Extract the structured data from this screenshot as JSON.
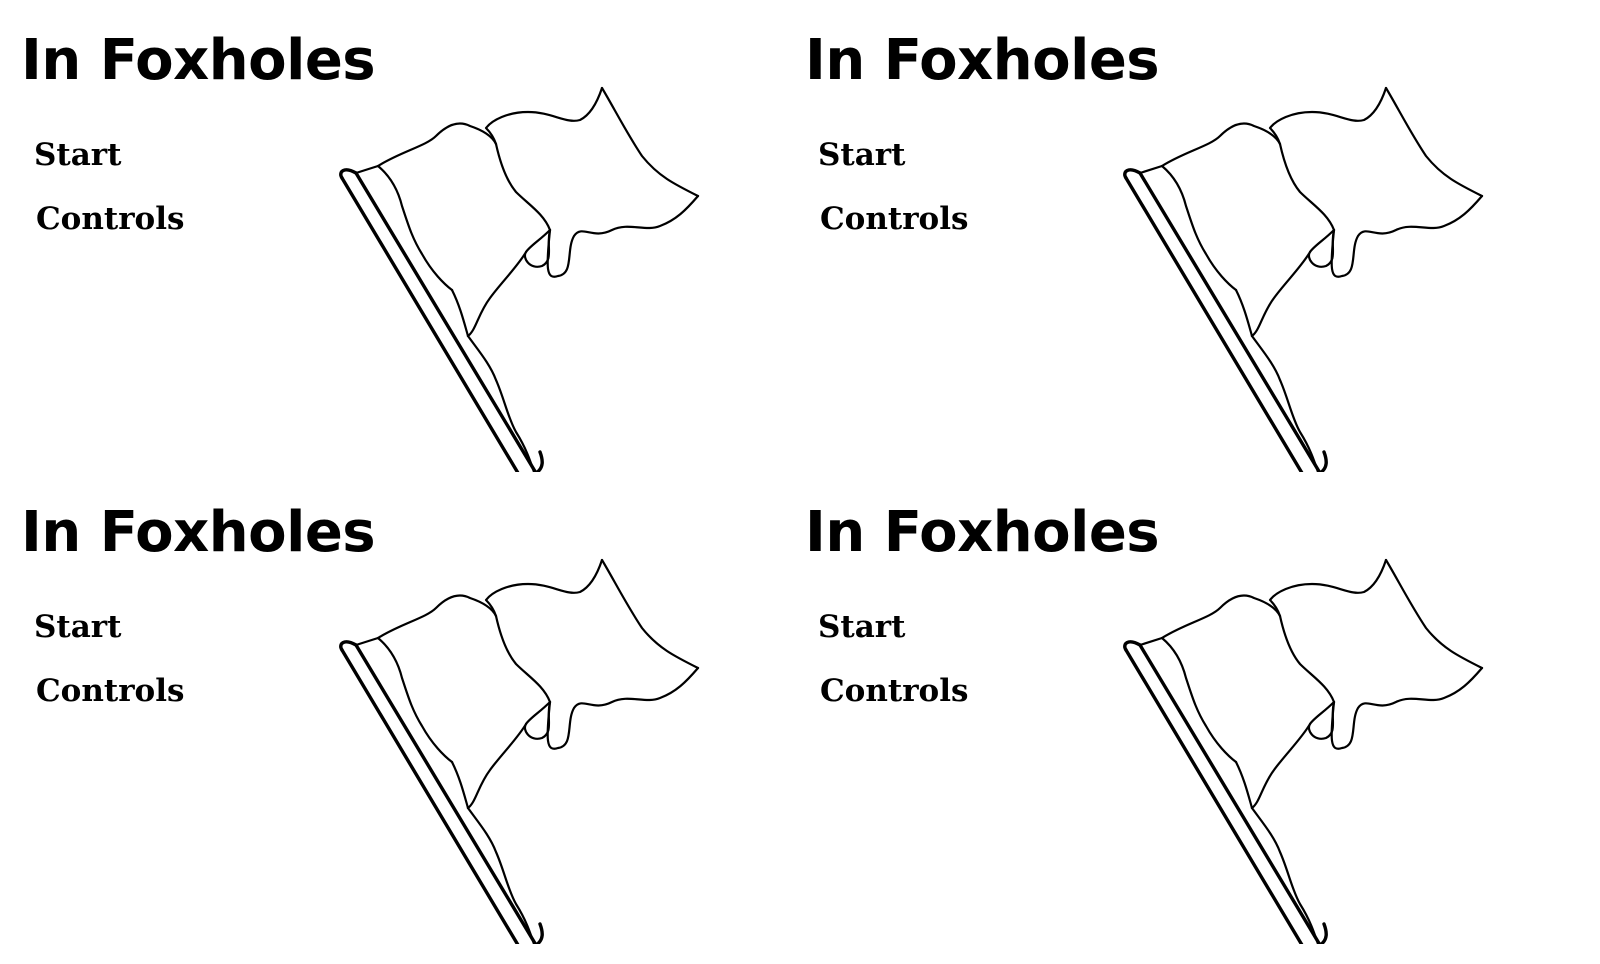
{
  "game": {
    "title": "In Foxholes",
    "menu": {
      "start_label": "Start",
      "controls_label": "Controls"
    }
  },
  "colors": {
    "background": "#ffffff",
    "ink": "#000000"
  },
  "icons": {
    "flag": "white-flag-icon"
  }
}
